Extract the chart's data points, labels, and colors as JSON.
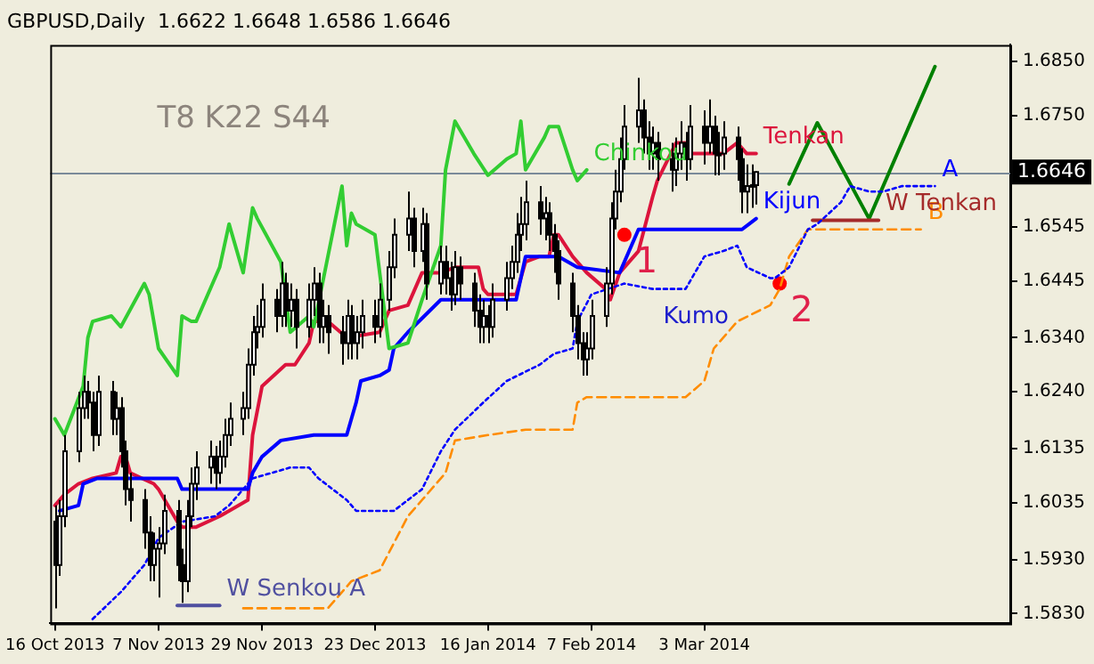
{
  "chart_data": {
    "type": "candlestick",
    "title": "GBPUSD,Daily  1.6622 1.6648 1.6586 1.6646",
    "x": [
      "2013-10-16",
      "2013-10-17",
      "2013-10-18",
      "2013-10-21",
      "2013-10-22",
      "2013-10-23",
      "2013-10-24",
      "2013-10-25",
      "2013-10-28",
      "2013-10-29",
      "2013-10-30",
      "2013-10-31",
      "2013-11-01",
      "2013-11-04",
      "2013-11-05",
      "2013-11-06",
      "2013-11-07",
      "2013-11-08",
      "2013-11-11",
      "2013-11-12",
      "2013-11-13",
      "2013-11-14",
      "2013-11-15",
      "2013-11-18",
      "2013-11-19",
      "2013-11-20",
      "2013-11-21",
      "2013-11-22",
      "2013-11-25",
      "2013-11-26",
      "2013-11-27",
      "2013-11-28",
      "2013-11-29",
      "2013-12-02",
      "2013-12-03",
      "2013-12-04",
      "2013-12-05",
      "2013-12-06",
      "2013-12-09",
      "2013-12-10",
      "2013-12-11",
      "2013-12-12",
      "2013-12-13",
      "2013-12-16",
      "2013-12-17",
      "2013-12-18",
      "2013-12-19",
      "2013-12-20",
      "2013-12-23",
      "2013-12-24",
      "2013-12-26",
      "2013-12-27",
      "2013-12-30",
      "2013-12-31",
      "2014-01-02",
      "2014-01-03",
      "2014-01-06",
      "2014-01-07",
      "2014-01-08",
      "2014-01-09",
      "2014-01-10",
      "2014-01-13",
      "2014-01-14",
      "2014-01-15",
      "2014-01-16",
      "2014-01-17",
      "2014-01-20",
      "2014-01-21",
      "2014-01-22",
      "2014-01-23",
      "2014-01-24",
      "2014-01-27",
      "2014-01-28",
      "2014-01-29",
      "2014-01-30",
      "2014-01-31",
      "2014-02-03",
      "2014-02-04",
      "2014-02-05",
      "2014-02-06",
      "2014-02-07",
      "2014-02-10",
      "2014-02-11",
      "2014-02-12",
      "2014-02-13",
      "2014-02-14",
      "2014-02-17",
      "2014-02-18",
      "2014-02-19",
      "2014-02-20",
      "2014-02-21",
      "2014-02-24",
      "2014-02-25",
      "2014-02-26",
      "2014-02-27",
      "2014-02-28",
      "2014-03-03",
      "2014-03-04",
      "2014-03-05",
      "2014-03-06",
      "2014-03-07",
      "2014-03-10",
      "2014-03-11",
      "2014-03-12",
      "2014-03-13",
      "2014-03-14"
    ],
    "ohlc": [
      [
        1.6,
        1.603,
        1.584,
        1.592
      ],
      [
        1.592,
        1.604,
        1.59,
        1.601
      ],
      [
        1.601,
        1.616,
        1.599,
        1.613
      ],
      [
        1.613,
        1.624,
        1.611,
        1.621
      ],
      [
        1.621,
        1.627,
        1.619,
        1.624
      ],
      [
        1.624,
        1.626,
        1.619,
        1.622
      ],
      [
        1.622,
        1.624,
        1.613,
        1.616
      ],
      [
        1.616,
        1.627,
        1.614,
        1.624
      ],
      [
        1.624,
        1.626,
        1.616,
        1.619
      ],
      [
        1.619,
        1.624,
        1.616,
        1.621
      ],
      [
        1.621,
        1.623,
        1.61,
        1.613
      ],
      [
        1.613,
        1.615,
        1.603,
        1.606
      ],
      [
        1.606,
        1.609,
        1.6,
        1.604
      ],
      [
        1.604,
        1.606,
        1.595,
        1.598
      ],
      [
        1.598,
        1.601,
        1.589,
        1.592
      ],
      [
        1.592,
        1.598,
        1.589,
        1.595
      ],
      [
        1.595,
        1.599,
        1.586,
        1.596
      ],
      [
        1.596,
        1.605,
        1.594,
        1.602
      ],
      [
        1.602,
        1.604,
        1.589,
        1.592
      ],
      [
        1.592,
        1.595,
        1.585,
        1.589
      ],
      [
        1.589,
        1.604,
        1.587,
        1.601
      ],
      [
        1.601,
        1.61,
        1.599,
        1.607
      ],
      [
        1.607,
        1.613,
        1.604,
        1.61
      ],
      [
        1.61,
        1.615,
        1.607,
        1.612
      ],
      [
        1.612,
        1.614,
        1.606,
        1.609
      ],
      [
        1.609,
        1.615,
        1.607,
        1.612
      ],
      [
        1.612,
        1.619,
        1.61,
        1.616
      ],
      [
        1.616,
        1.622,
        1.614,
        1.619
      ],
      [
        1.619,
        1.624,
        1.616,
        1.621
      ],
      [
        1.621,
        1.632,
        1.619,
        1.629
      ],
      [
        1.629,
        1.638,
        1.627,
        1.635
      ],
      [
        1.635,
        1.64,
        1.632,
        1.636
      ],
      [
        1.636,
        1.644,
        1.634,
        1.641
      ],
      [
        1.641,
        1.643,
        1.635,
        1.638
      ],
      [
        1.638,
        1.648,
        1.636,
        1.644
      ],
      [
        1.644,
        1.646,
        1.636,
        1.639
      ],
      [
        1.639,
        1.644,
        1.636,
        1.641
      ],
      [
        1.641,
        1.643,
        1.632,
        1.636
      ],
      [
        1.636,
        1.644,
        1.634,
        1.641
      ],
      [
        1.641,
        1.647,
        1.638,
        1.644
      ],
      [
        1.644,
        1.646,
        1.633,
        1.636
      ],
      [
        1.636,
        1.641,
        1.633,
        1.638
      ],
      [
        1.638,
        1.64,
        1.631,
        1.635
      ],
      [
        1.635,
        1.638,
        1.629,
        1.633
      ],
      [
        1.633,
        1.641,
        1.63,
        1.638
      ],
      [
        1.638,
        1.64,
        1.63,
        1.633
      ],
      [
        1.633,
        1.638,
        1.63,
        1.635
      ],
      [
        1.635,
        1.641,
        1.632,
        1.638
      ],
      [
        1.638,
        1.641,
        1.633,
        1.636
      ],
      [
        1.636,
        1.644,
        1.634,
        1.641
      ],
      [
        1.641,
        1.65,
        1.639,
        1.647
      ],
      [
        1.647,
        1.656,
        1.645,
        1.653
      ],
      [
        1.653,
        1.661,
        1.65,
        1.656
      ],
      [
        1.656,
        1.658,
        1.647,
        1.65
      ],
      [
        1.65,
        1.658,
        1.648,
        1.655
      ],
      [
        1.655,
        1.657,
        1.641,
        1.644
      ],
      [
        1.644,
        1.651,
        1.642,
        1.648
      ],
      [
        1.648,
        1.651,
        1.642,
        1.645
      ],
      [
        1.645,
        1.648,
        1.639,
        1.642
      ],
      [
        1.642,
        1.65,
        1.64,
        1.647
      ],
      [
        1.647,
        1.649,
        1.641,
        1.644
      ],
      [
        1.644,
        1.646,
        1.636,
        1.639
      ],
      [
        1.639,
        1.642,
        1.633,
        1.636
      ],
      [
        1.636,
        1.641,
        1.633,
        1.638
      ],
      [
        1.638,
        1.64,
        1.633,
        1.636
      ],
      [
        1.636,
        1.644,
        1.634,
        1.641
      ],
      [
        1.641,
        1.648,
        1.639,
        1.645
      ],
      [
        1.645,
        1.651,
        1.643,
        1.648
      ],
      [
        1.648,
        1.657,
        1.646,
        1.653
      ],
      [
        1.653,
        1.66,
        1.65,
        1.655
      ],
      [
        1.655,
        1.663,
        1.652,
        1.659
      ],
      [
        1.659,
        1.662,
        1.653,
        1.656
      ],
      [
        1.656,
        1.66,
        1.652,
        1.657
      ],
      [
        1.657,
        1.659,
        1.65,
        1.653
      ],
      [
        1.653,
        1.655,
        1.646,
        1.65
      ],
      [
        1.65,
        1.652,
        1.641,
        1.644
      ],
      [
        1.644,
        1.646,
        1.635,
        1.638
      ],
      [
        1.638,
        1.64,
        1.63,
        1.633
      ],
      [
        1.633,
        1.635,
        1.627,
        1.63
      ],
      [
        1.63,
        1.635,
        1.627,
        1.632
      ],
      [
        1.632,
        1.641,
        1.63,
        1.638
      ],
      [
        1.638,
        1.647,
        1.636,
        1.644
      ],
      [
        1.644,
        1.659,
        1.642,
        1.656
      ],
      [
        1.656,
        1.665,
        1.654,
        1.661
      ],
      [
        1.661,
        1.671,
        1.659,
        1.667
      ],
      [
        1.667,
        1.677,
        1.665,
        1.673
      ],
      [
        1.673,
        1.682,
        1.67,
        1.676
      ],
      [
        1.676,
        1.678,
        1.668,
        1.671
      ],
      [
        1.671,
        1.674,
        1.665,
        1.668
      ],
      [
        1.668,
        1.673,
        1.665,
        1.67
      ],
      [
        1.67,
        1.672,
        1.663,
        1.667
      ],
      [
        1.667,
        1.67,
        1.661,
        1.665
      ],
      [
        1.665,
        1.671,
        1.662,
        1.668
      ],
      [
        1.668,
        1.674,
        1.665,
        1.67
      ],
      [
        1.67,
        1.672,
        1.663,
        1.667
      ],
      [
        1.667,
        1.677,
        1.665,
        1.673
      ],
      [
        1.673,
        1.676,
        1.666,
        1.67
      ],
      [
        1.67,
        1.678,
        1.668,
        1.673
      ],
      [
        1.673,
        1.675,
        1.664,
        1.668
      ],
      [
        1.668,
        1.672,
        1.664,
        1.668
      ],
      [
        1.668,
        1.674,
        1.665,
        1.671
      ],
      [
        1.671,
        1.673,
        1.663,
        1.667
      ],
      [
        1.667,
        1.669,
        1.657,
        1.661
      ],
      [
        1.661,
        1.666,
        1.657,
        1.662
      ],
      [
        1.662,
        1.666,
        1.658,
        1.6622
      ],
      [
        1.6622,
        1.6648,
        1.6586,
        1.6646
      ]
    ],
    "series": [
      {
        "type": "line",
        "name": "Chinkou",
        "color": "#32cd32",
        "x": [
          "2013-10-16",
          "2013-10-18",
          "2013-10-22",
          "2013-10-23",
          "2013-10-24",
          "2013-10-28",
          "2013-10-30",
          "2013-11-04",
          "2013-11-05",
          "2013-11-07",
          "2013-11-11",
          "2013-11-12",
          "2013-11-14",
          "2013-11-15",
          "2013-11-20",
          "2013-11-22",
          "2013-11-25",
          "2013-11-27",
          "2013-11-28",
          "2013-12-03",
          "2013-12-05",
          "2013-12-09",
          "2013-12-10",
          "2013-12-16",
          "2013-12-17",
          "2013-12-18",
          "2013-12-19",
          "2013-12-23",
          "2013-12-26",
          "2013-12-30",
          "2014-01-02",
          "2014-01-06",
          "2014-01-07",
          "2014-01-09",
          "2014-01-13",
          "2014-01-16",
          "2014-01-20",
          "2014-01-22",
          "2014-01-23",
          "2014-01-24",
          "2014-01-28",
          "2014-01-29",
          "2014-01-31",
          "2014-02-03",
          "2014-02-04",
          "2014-02-06"
        ],
        "values": [
          1.619,
          1.616,
          1.625,
          1.634,
          1.637,
          1.638,
          1.636,
          1.644,
          1.642,
          1.632,
          1.627,
          1.638,
          1.637,
          1.637,
          1.647,
          1.655,
          1.646,
          1.658,
          1.656,
          1.648,
          1.635,
          1.638,
          1.636,
          1.662,
          1.651,
          1.657,
          1.655,
          1.653,
          1.632,
          1.633,
          1.641,
          1.651,
          1.665,
          1.674,
          1.668,
          1.664,
          1.667,
          1.668,
          1.674,
          1.665,
          1.671,
          1.673,
          1.673,
          1.665,
          1.663,
          1.665
        ]
      },
      {
        "type": "line",
        "name": "A",
        "color": "#0000ff",
        "line_style": "dotted",
        "x": [
          "2013-10-24",
          "2013-10-30",
          "2013-11-04",
          "2013-11-07",
          "2013-11-12",
          "2013-11-19",
          "2013-11-22",
          "2013-11-27",
          "2013-12-05",
          "2013-12-09",
          "2013-12-11",
          "2013-12-17",
          "2013-12-19",
          "2013-12-27",
          "2014-01-02",
          "2014-01-06",
          "2014-01-09",
          "2014-01-15",
          "2014-01-20",
          "2014-01-27",
          "2014-01-30",
          "2014-02-03",
          "2014-02-04",
          "2014-02-07",
          "2014-02-14",
          "2014-02-20",
          "2014-02-27",
          "2014-03-03",
          "2014-03-07",
          "2014-03-10",
          "2014-03-12",
          "2014-03-17",
          "2014-03-18",
          "2014-03-21",
          "2014-03-25",
          "2014-03-27",
          "2014-04-01",
          "2014-04-03",
          "2014-04-07",
          "2014-04-10",
          "2014-04-14",
          "2014-04-21"
        ],
        "values": [
          1.582,
          1.587,
          1.592,
          1.597,
          1.6,
          1.601,
          1.603,
          1.608,
          1.61,
          1.61,
          1.608,
          1.604,
          1.602,
          1.602,
          1.606,
          1.613,
          1.617,
          1.622,
          1.626,
          1.629,
          1.631,
          1.632,
          1.637,
          1.642,
          1.644,
          1.643,
          1.643,
          1.649,
          1.65,
          1.651,
          1.647,
          1.645,
          1.645,
          1.647,
          1.654,
          1.655,
          1.659,
          1.662,
          1.661,
          1.661,
          1.662,
          1.662
        ]
      },
      {
        "type": "line",
        "name": "B",
        "color": "#ff8c00",
        "line_style": "dashed",
        "x": [
          "2013-11-25",
          "2013-12-13",
          "2013-12-18",
          "2013-12-24",
          "2013-12-30",
          "2014-01-02",
          "2014-01-07",
          "2014-01-09",
          "2014-01-16",
          "2014-01-24",
          "2014-02-03",
          "2014-02-04",
          "2014-02-06",
          "2014-02-27",
          "2014-03-03",
          "2014-03-05",
          "2014-03-07",
          "2014-03-10",
          "2014-03-17",
          "2014-03-19",
          "2014-03-21",
          "2014-03-25",
          "2014-04-08",
          "2014-04-18"
        ],
        "values": [
          1.584,
          1.584,
          1.589,
          1.591,
          1.601,
          1.604,
          1.609,
          1.615,
          1.616,
          1.617,
          1.617,
          1.622,
          1.623,
          1.623,
          1.626,
          1.632,
          1.634,
          1.637,
          1.64,
          1.643,
          1.649,
          1.654,
          1.654,
          1.654
        ]
      },
      {
        "type": "line",
        "name": "Kijun",
        "color": "#0000ff",
        "x": [
          "2013-10-17",
          "2013-10-21",
          "2013-10-22",
          "2013-10-25",
          "2013-11-11",
          "2013-11-12",
          "2013-11-26",
          "2013-11-27",
          "2013-11-29",
          "2013-12-03",
          "2013-12-10",
          "2013-12-17",
          "2013-12-19",
          "2013-12-20",
          "2013-12-24",
          "2013-12-26",
          "2013-12-27",
          "2013-12-30",
          "2014-01-06",
          "2014-01-22",
          "2014-01-24",
          "2014-01-31",
          "2014-02-04",
          "2014-02-13",
          "2014-02-17",
          "2014-03-11",
          "2014-03-14"
        ],
        "values": [
          1.602,
          1.603,
          1.607,
          1.608,
          1.608,
          1.606,
          1.606,
          1.609,
          1.612,
          1.615,
          1.616,
          1.616,
          1.622,
          1.626,
          1.627,
          1.628,
          1.632,
          1.635,
          1.641,
          1.641,
          1.649,
          1.649,
          1.647,
          1.646,
          1.654,
          1.654,
          1.656
        ]
      },
      {
        "type": "line",
        "name": "Tenkan",
        "color": "#dc143c",
        "x": [
          "2013-10-16",
          "2013-10-18",
          "2013-10-21",
          "2013-10-24",
          "2013-10-29",
          "2013-10-30",
          "2013-10-31",
          "2013-11-01",
          "2013-11-06",
          "2013-11-07",
          "2013-11-11",
          "2013-11-12",
          "2013-11-15",
          "2013-11-20",
          "2013-11-22",
          "2013-11-26",
          "2013-11-27",
          "2013-11-29",
          "2013-12-04",
          "2013-12-06",
          "2013-12-09",
          "2013-12-10",
          "2013-12-11",
          "2013-12-13",
          "2013-12-17",
          "2013-12-24",
          "2013-12-26",
          "2013-12-30",
          "2014-01-02",
          "2014-01-06",
          "2014-01-09",
          "2014-01-14",
          "2014-01-15",
          "2014-01-16",
          "2014-01-22",
          "2014-01-24",
          "2014-01-27",
          "2014-01-29",
          "2014-01-30",
          "2014-01-31",
          "2014-02-03",
          "2014-02-06",
          "2014-02-10",
          "2014-02-11",
          "2014-02-13",
          "2014-02-17",
          "2014-02-20",
          "2014-02-21",
          "2014-02-25",
          "2014-02-27",
          "2014-02-28",
          "2014-03-07",
          "2014-03-10",
          "2014-03-12",
          "2014-03-14"
        ],
        "values": [
          1.603,
          1.605,
          1.607,
          1.608,
          1.609,
          1.612,
          1.612,
          1.609,
          1.607,
          1.606,
          1.6,
          1.599,
          1.599,
          1.601,
          1.602,
          1.604,
          1.616,
          1.625,
          1.629,
          1.629,
          1.633,
          1.637,
          null,
          1.637,
          1.634,
          1.635,
          1.639,
          1.64,
          1.646,
          1.646,
          1.647,
          1.647,
          1.643,
          1.642,
          1.642,
          1.648,
          1.649,
          1.649,
          1.653,
          1.653,
          1.649,
          1.646,
          1.643,
          1.641,
          1.646,
          1.65,
          1.66,
          1.663,
          1.67,
          1.67,
          1.668,
          1.668,
          1.67,
          1.668,
          1.668
        ]
      },
      {
        "type": "line",
        "name": "W Senkou A",
        "color": "#5050a0",
        "x": [
          "2013-11-11",
          "2013-11-20"
        ],
        "values": [
          1.5845,
          1.5845
        ]
      },
      {
        "type": "line",
        "name": "W Tenkan",
        "color": "#a52a2a",
        "x": [
          "2014-03-26",
          "2014-04-09"
        ],
        "values": [
          1.6557,
          1.6557
        ]
      },
      {
        "type": "line",
        "color": "#008000",
        "x": [
          "2014-03-21",
          "2014-03-27",
          "2014-04-07",
          "2014-04-21"
        ],
        "values": [
          1.6624,
          1.6737,
          1.656,
          1.6841
        ]
      },
      {
        "type": "scatter",
        "color": "#ff0000",
        "marker": "circle",
        "x": [
          "2014-02-14",
          "2014-03-19"
        ],
        "values": [
          1.653,
          1.644
        ]
      }
    ],
    "xlim": [
      "2013-10-15",
      "2014-05-07"
    ],
    "xticks": [
      {
        "value": "2013-10-16",
        "label": "16 Oct 2013"
      },
      {
        "value": "2013-11-07",
        "label": "7 Nov 2013"
      },
      {
        "value": "2013-11-29",
        "label": "29 Nov 2013"
      },
      {
        "value": "2013-12-23",
        "label": "23 Dec 2013"
      },
      {
        "value": "2014-01-16",
        "label": "16 Jan 2014"
      },
      {
        "value": "2014-02-07",
        "label": "7 Feb 2014"
      },
      {
        "value": "2014-03-03",
        "label": "3 Mar 2014"
      }
    ],
    "ylim": [
      1.5812,
      1.6881
    ],
    "yticks": [
      {
        "value": 1.685,
        "label": "1.6850"
      },
      {
        "value": 1.675,
        "label": "1.6750"
      },
      1.6545,
      1.6445,
      {
        "value": 1.634,
        "label": "1.6340"
      },
      {
        "value": 1.624,
        "label": "1.6240"
      },
      1.6135,
      1.6035,
      {
        "value": 1.593,
        "label": "1.5930"
      },
      {
        "value": 1.583,
        "label": "1.5830"
      }
    ],
    "ref_lines": [
      {
        "axis": "y",
        "value": 1.6646,
        "label": "1.6646",
        "color": "#7a8a99"
      }
    ],
    "annotations": [
      "T8 K22 S44",
      {
        "text": "1",
        "x": "2014-02-14",
        "y": 1.653
      },
      {
        "text": "2",
        "x": "2014-03-19",
        "y": 1.644
      },
      {
        "text": "Kumo",
        "x": "2014-02-20",
        "y": 1.643
      }
    ],
    "legend": false,
    "grid": false
  }
}
